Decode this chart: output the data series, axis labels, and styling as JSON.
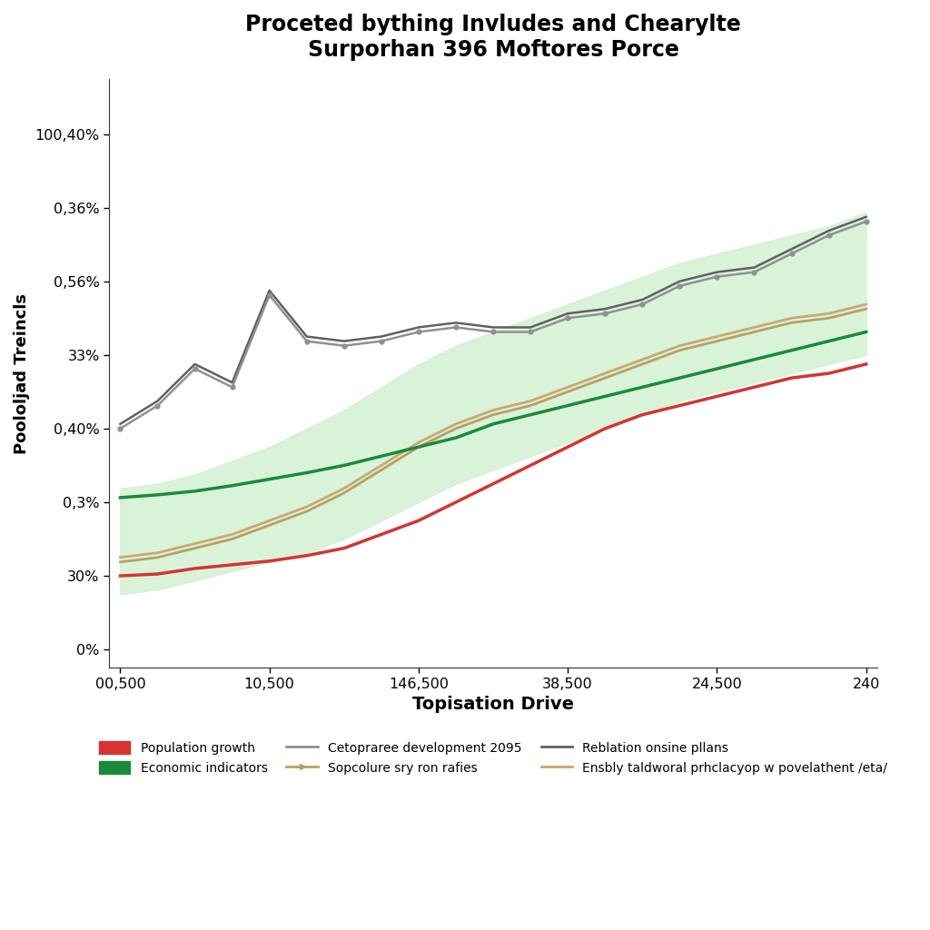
{
  "title": "Proceted bything Invludes and Chearylte\nSurporhan 396 Moftores Porce",
  "xlabel": "Topisation Drive",
  "ylabel": "Poololjad Treincls",
  "xtick_labels": [
    "00,500",
    "10,500",
    "146,500",
    "38,500",
    "24,500",
    "240"
  ],
  "ytick_labels": [
    "0%",
    "30%",
    "0,3%",
    "0,40%",
    "33%",
    "0,56%",
    "0,36%",
    "100,40%"
  ],
  "ytick_positions": [
    0,
    8,
    16,
    24,
    32,
    40,
    48,
    56
  ],
  "x_positions": [
    0,
    1,
    2,
    3,
    4,
    5,
    6,
    7,
    8,
    9,
    10,
    11,
    12,
    13,
    14,
    15,
    16,
    17,
    18,
    19,
    20
  ],
  "red_line": [
    8.0,
    8.2,
    8.8,
    9.2,
    9.6,
    10.2,
    11.0,
    12.5,
    14.0,
    16.0,
    18.0,
    20.0,
    22.0,
    24.0,
    25.5,
    26.5,
    27.5,
    28.5,
    29.5,
    30.0,
    31.0
  ],
  "green_line": [
    16.5,
    16.8,
    17.2,
    17.8,
    18.5,
    19.2,
    20.0,
    21.0,
    22.0,
    23.0,
    24.5,
    25.5,
    26.5,
    27.5,
    28.5,
    29.5,
    30.5,
    31.5,
    32.5,
    33.5,
    34.5
  ],
  "tan_line": [
    9.5,
    10.0,
    11.0,
    12.0,
    13.5,
    15.0,
    17.0,
    19.5,
    22.0,
    24.0,
    25.5,
    26.5,
    28.0,
    29.5,
    31.0,
    32.5,
    33.5,
    34.5,
    35.5,
    36.0,
    37.0
  ],
  "tan2_line": [
    10.0,
    10.5,
    11.5,
    12.5,
    14.0,
    15.5,
    17.5,
    20.0,
    22.5,
    24.5,
    26.0,
    27.0,
    28.5,
    30.0,
    31.5,
    33.0,
    34.0,
    35.0,
    36.0,
    36.5,
    37.5
  ],
  "gray_line": [
    24.0,
    26.5,
    30.5,
    28.5,
    38.5,
    33.5,
    33.0,
    33.5,
    34.5,
    35.0,
    34.5,
    34.5,
    36.0,
    36.5,
    37.5,
    39.5,
    40.5,
    41.0,
    43.0,
    45.0,
    46.5
  ],
  "dark_gray_line": [
    24.5,
    27.0,
    31.0,
    29.0,
    39.0,
    34.0,
    33.5,
    34.0,
    35.0,
    35.5,
    35.0,
    35.0,
    36.5,
    37.0,
    38.0,
    40.0,
    41.0,
    41.5,
    43.5,
    45.5,
    47.0
  ],
  "shade_upper": [
    17.5,
    18.0,
    19.0,
    20.5,
    22.0,
    24.0,
    26.0,
    28.5,
    31.0,
    33.0,
    34.5,
    36.0,
    37.5,
    39.0,
    40.5,
    42.0,
    43.0,
    44.0,
    45.0,
    46.0,
    47.5
  ],
  "shade_lower": [
    6.0,
    6.5,
    7.5,
    8.5,
    9.5,
    10.5,
    12.0,
    14.0,
    16.0,
    18.0,
    19.5,
    21.0,
    22.5,
    24.0,
    25.5,
    27.0,
    28.0,
    29.0,
    30.0,
    31.0,
    32.0
  ],
  "red_color": "#d63333",
  "green_color": "#1a8a3a",
  "gray_color": "#909090",
  "dark_gray_color": "#606060",
  "tan_color": "#b8a060",
  "tan2_color": "#c8a870",
  "shade_color": "#d0f0d0",
  "background_color": "#ffffff",
  "ylim": [
    -2,
    62
  ],
  "xlim": [
    -0.3,
    20.3
  ]
}
